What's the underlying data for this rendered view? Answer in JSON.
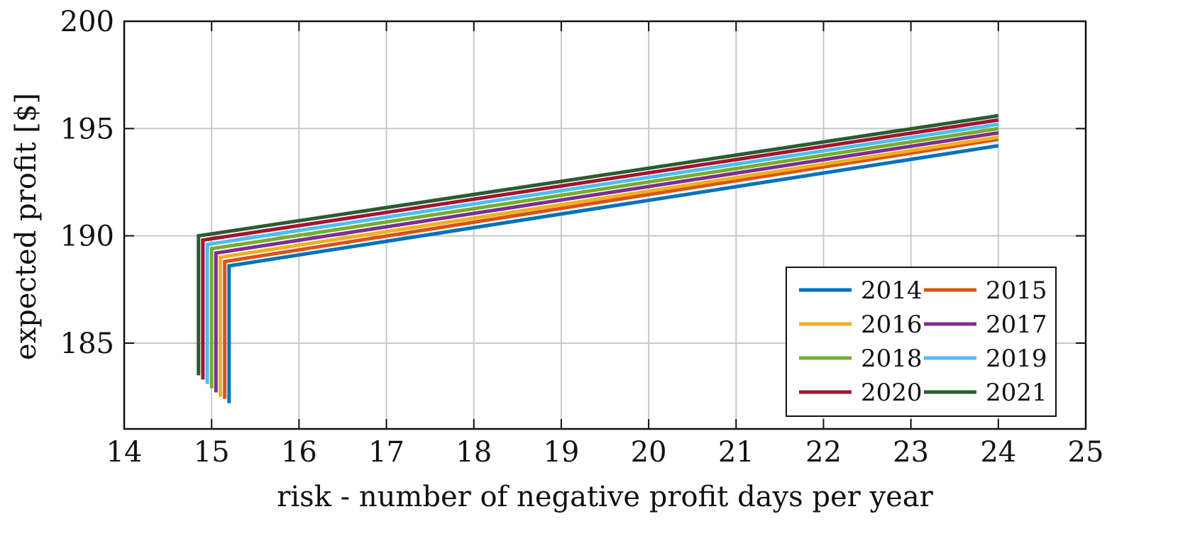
{
  "chart_data": {
    "type": "line",
    "title": "",
    "xlabel": "risk - number of negative profit days per year",
    "ylabel": "expected profit [$]",
    "xlim": [
      14,
      25
    ],
    "ylim": [
      181,
      200
    ],
    "xticks": [
      14,
      15,
      16,
      17,
      18,
      19,
      20,
      21,
      22,
      23,
      24,
      25
    ],
    "yticks": [
      185,
      190,
      195,
      200
    ],
    "grid": true,
    "legend": {
      "placement": "bottom-right",
      "columns": 2
    },
    "series": [
      {
        "name": "2014",
        "color": "#0072BD",
        "x": [
          15.2,
          15.2,
          24
        ],
        "y": [
          182.2,
          188.6,
          194.2
        ]
      },
      {
        "name": "2015",
        "color": "#D95319",
        "x": [
          15.15,
          15.15,
          24
        ],
        "y": [
          182.4,
          188.8,
          194.5
        ]
      },
      {
        "name": "2016",
        "color": "#EDB120",
        "x": [
          15.1,
          15.1,
          24
        ],
        "y": [
          182.5,
          189.0,
          194.6
        ]
      },
      {
        "name": "2017",
        "color": "#7E2F8E",
        "x": [
          15.05,
          15.05,
          24
        ],
        "y": [
          182.7,
          189.2,
          194.8
        ]
      },
      {
        "name": "2018",
        "color": "#77AC30",
        "x": [
          15.0,
          15.0,
          24
        ],
        "y": [
          182.9,
          189.4,
          195.0
        ]
      },
      {
        "name": "2019",
        "color": "#4DBEEE",
        "x": [
          14.95,
          14.95,
          24
        ],
        "y": [
          183.1,
          189.6,
          195.2
        ]
      },
      {
        "name": "2020",
        "color": "#A2142F",
        "x": [
          14.9,
          14.9,
          24
        ],
        "y": [
          183.3,
          189.8,
          195.4
        ]
      },
      {
        "name": "2021",
        "color": "#2A5C32",
        "x": [
          14.85,
          14.85,
          24
        ],
        "y": [
          183.5,
          190.0,
          195.6
        ]
      }
    ]
  }
}
